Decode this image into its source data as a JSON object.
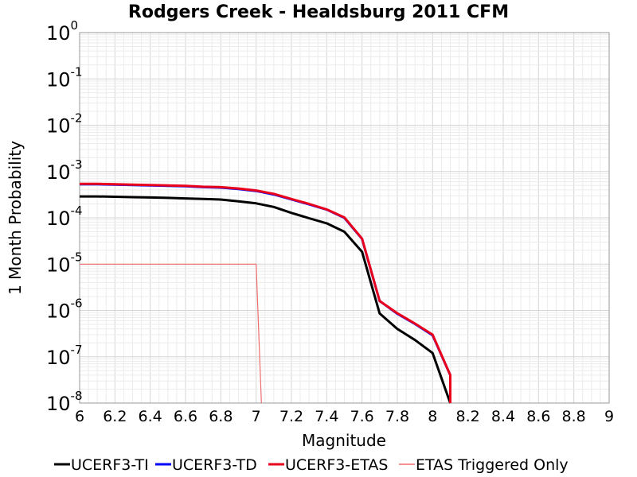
{
  "chart_data": {
    "type": "line",
    "title": "Rodgers Creek - Healdsburg 2011 CFM",
    "xlabel": "Magnitude",
    "ylabel": "1 Month Probability",
    "xlim": [
      6,
      9
    ],
    "ylim": [
      1e-08,
      1
    ],
    "y_scale": "log",
    "grid": true,
    "legend_position": "bottom",
    "x_ticks": [
      "6",
      "6.2",
      "6.4",
      "6.6",
      "6.8",
      "7",
      "7.2",
      "7.4",
      "7.6",
      "7.8",
      "8",
      "8.2",
      "8.4",
      "8.6",
      "8.8",
      "9"
    ],
    "y_ticks": [
      {
        "base": "10",
        "exp": "0"
      },
      {
        "base": "10",
        "exp": "-1"
      },
      {
        "base": "10",
        "exp": "-2"
      },
      {
        "base": "10",
        "exp": "-3"
      },
      {
        "base": "10",
        "exp": "-4"
      },
      {
        "base": "10",
        "exp": "-5"
      },
      {
        "base": "10",
        "exp": "-6"
      },
      {
        "base": "10",
        "exp": "-7"
      },
      {
        "base": "10",
        "exp": "-8"
      }
    ],
    "series": [
      {
        "name": "UCERF3-TI",
        "color": "#000000",
        "x": [
          6.0,
          6.1,
          6.2,
          6.3,
          6.4,
          6.5,
          6.6,
          6.7,
          6.8,
          6.9,
          7.0,
          7.1,
          7.2,
          7.3,
          7.4,
          7.5,
          7.6,
          7.7,
          7.8,
          7.9,
          8.0,
          8.1
        ],
        "y": [
          0.00029,
          0.00029,
          0.000285,
          0.00028,
          0.000275,
          0.00027,
          0.000262,
          0.000255,
          0.000248,
          0.000228,
          0.000205,
          0.000172,
          0.000128,
          9.8e-05,
          7.6e-05,
          5e-05,
          1.85e-05,
          8.6e-07,
          4e-07,
          2.3e-07,
          1.2e-07,
          1e-08
        ]
      },
      {
        "name": "UCERF3-TD",
        "color": "#0000ff",
        "x": [
          6.0,
          6.1,
          6.2,
          6.3,
          6.4,
          6.5,
          6.6,
          6.7,
          6.8,
          6.9,
          7.0,
          7.1,
          7.2,
          7.3,
          7.4,
          7.5,
          7.6,
          7.7,
          7.8,
          7.9,
          8.0,
          8.1
        ],
        "y": [
          0.00053,
          0.00053,
          0.00052,
          0.00051,
          0.0005,
          0.00049,
          0.00048,
          0.00046,
          0.00045,
          0.00042,
          0.00038,
          0.00032,
          0.00025,
          0.000195,
          0.00015,
          0.0001,
          3.5e-05,
          1.6e-06,
          8.5e-07,
          5.1e-07,
          2.9e-07,
          4e-08
        ]
      },
      {
        "name": "UCERF3-ETAS",
        "color": "#e8001c",
        "x": [
          6.0,
          6.1,
          6.2,
          6.3,
          6.4,
          6.5,
          6.6,
          6.7,
          6.8,
          6.9,
          7.0,
          7.1,
          7.2,
          7.3,
          7.4,
          7.5,
          7.6,
          7.7,
          7.8,
          7.9,
          8.0,
          8.1
        ],
        "y": [
          0.00054,
          0.00054,
          0.00053,
          0.00052,
          0.00051,
          0.0005,
          0.00049,
          0.00047,
          0.00046,
          0.00043,
          0.00039,
          0.00033,
          0.000255,
          0.0002,
          0.000152,
          0.000102,
          3.55e-05,
          1.6e-06,
          8.7e-07,
          5.2e-07,
          3e-07,
          4e-08
        ]
      },
      {
        "name": "ETAS Triggered Only",
        "color": "#f06d6d",
        "x": [
          6.0,
          7.0
        ],
        "y": [
          1e-05,
          1e-05
        ]
      }
    ]
  }
}
